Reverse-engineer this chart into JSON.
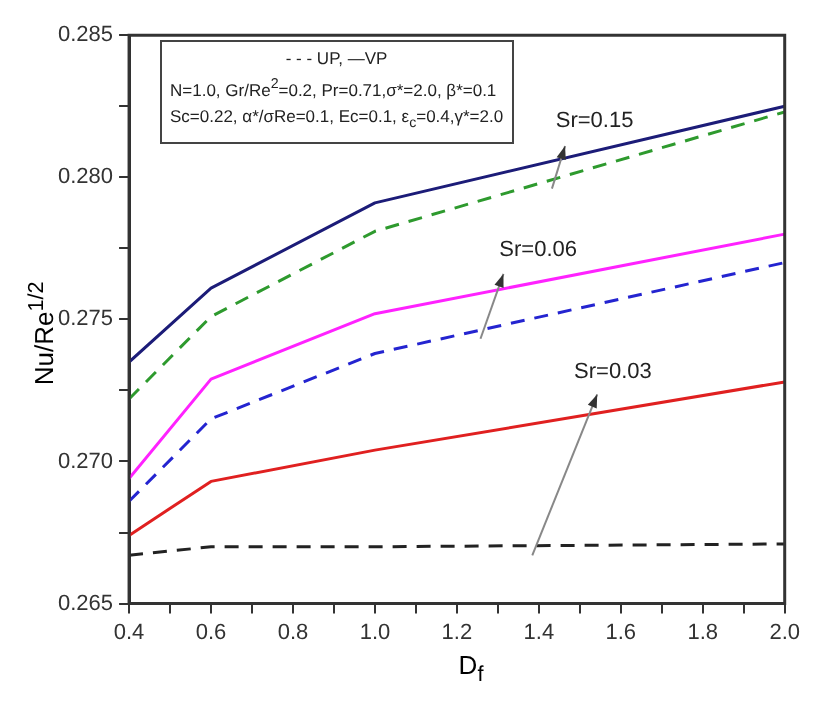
{
  "chart_data": {
    "type": "line",
    "xlabel": "D$_{f}$",
    "ylabel": "Nu/Re$^{1/2}$",
    "x": [
      0.4,
      0.6,
      1.0,
      2.0
    ],
    "series": [
      {
        "color": "#1c1c78",
        "line_style": "solid",
        "values": [
          0.2735,
          0.2761,
          0.2791,
          0.2825
        ]
      },
      {
        "color": "#2e9a2e",
        "line_style": "dashed",
        "values": [
          0.2722,
          0.2751,
          0.2781,
          0.2823
        ]
      },
      {
        "color": "#ff22ff",
        "line_style": "solid",
        "values": [
          0.2694,
          0.2729,
          0.2752,
          0.278
        ]
      },
      {
        "color": "#2424d0",
        "line_style": "dashed",
        "values": [
          0.2686,
          0.2715,
          0.2738,
          0.277
        ]
      },
      {
        "color": "#e02020",
        "line_style": "solid",
        "values": [
          0.2674,
          0.2693,
          0.2704,
          0.2728
        ]
      },
      {
        "color": "#222222",
        "line_style": "dashed",
        "values": [
          0.2667,
          0.267,
          0.267,
          0.2671
        ]
      }
    ],
    "xlim": [
      0.4,
      2.0
    ],
    "xticks": [
      {
        "value": 0.4,
        "label": "0.4"
      },
      {
        "value": 0.5,
        "label": null
      },
      {
        "value": 0.6,
        "label": "0.6"
      },
      {
        "value": 0.7,
        "label": null
      },
      {
        "value": 0.8,
        "label": "0.8"
      },
      {
        "value": 0.9,
        "label": null
      },
      {
        "value": 1.0,
        "label": "1.0"
      },
      {
        "value": 1.1,
        "label": null
      },
      {
        "value": 1.2,
        "label": "1.2"
      },
      {
        "value": 1.3,
        "label": null
      },
      {
        "value": 1.4,
        "label": "1.4"
      },
      {
        "value": 1.5,
        "label": null
      },
      {
        "value": 1.6,
        "label": "1.6"
      },
      {
        "value": 1.7,
        "label": null
      },
      {
        "value": 1.8,
        "label": "1.8"
      },
      {
        "value": 1.9,
        "label": null
      },
      {
        "value": 2.0,
        "label": "2.0"
      }
    ],
    "ylim": [
      0.265,
      0.285
    ],
    "yticks": [
      {
        "value": 0.265,
        "label": "0.265"
      },
      {
        "value": 0.2675,
        "label": null
      },
      {
        "value": 0.27,
        "label": "0.270"
      },
      {
        "value": 0.2725,
        "label": null
      },
      {
        "value": 0.275,
        "label": "0.275"
      },
      {
        "value": 0.2775,
        "label": null
      },
      {
        "value": 0.28,
        "label": "0.280"
      },
      {
        "value": 0.2825,
        "label": null
      },
      {
        "value": 0.285,
        "label": "0.285"
      }
    ],
    "grid": false,
    "legend": false,
    "marker": "none",
    "annotations": [
      "- - - UP, —VP",
      "N=1.0, Gr/Re$^{2}$=0.2, Pr=0.71,σ*=2.0, β*=0.1",
      "Sc=0.22, α*/σRe=0.1, Ec=0.1, ε$_{c}$=0.4,γ*=2.0",
      "Sr=0.15",
      "Sr=0.06",
      "Sr=0.03"
    ]
  }
}
